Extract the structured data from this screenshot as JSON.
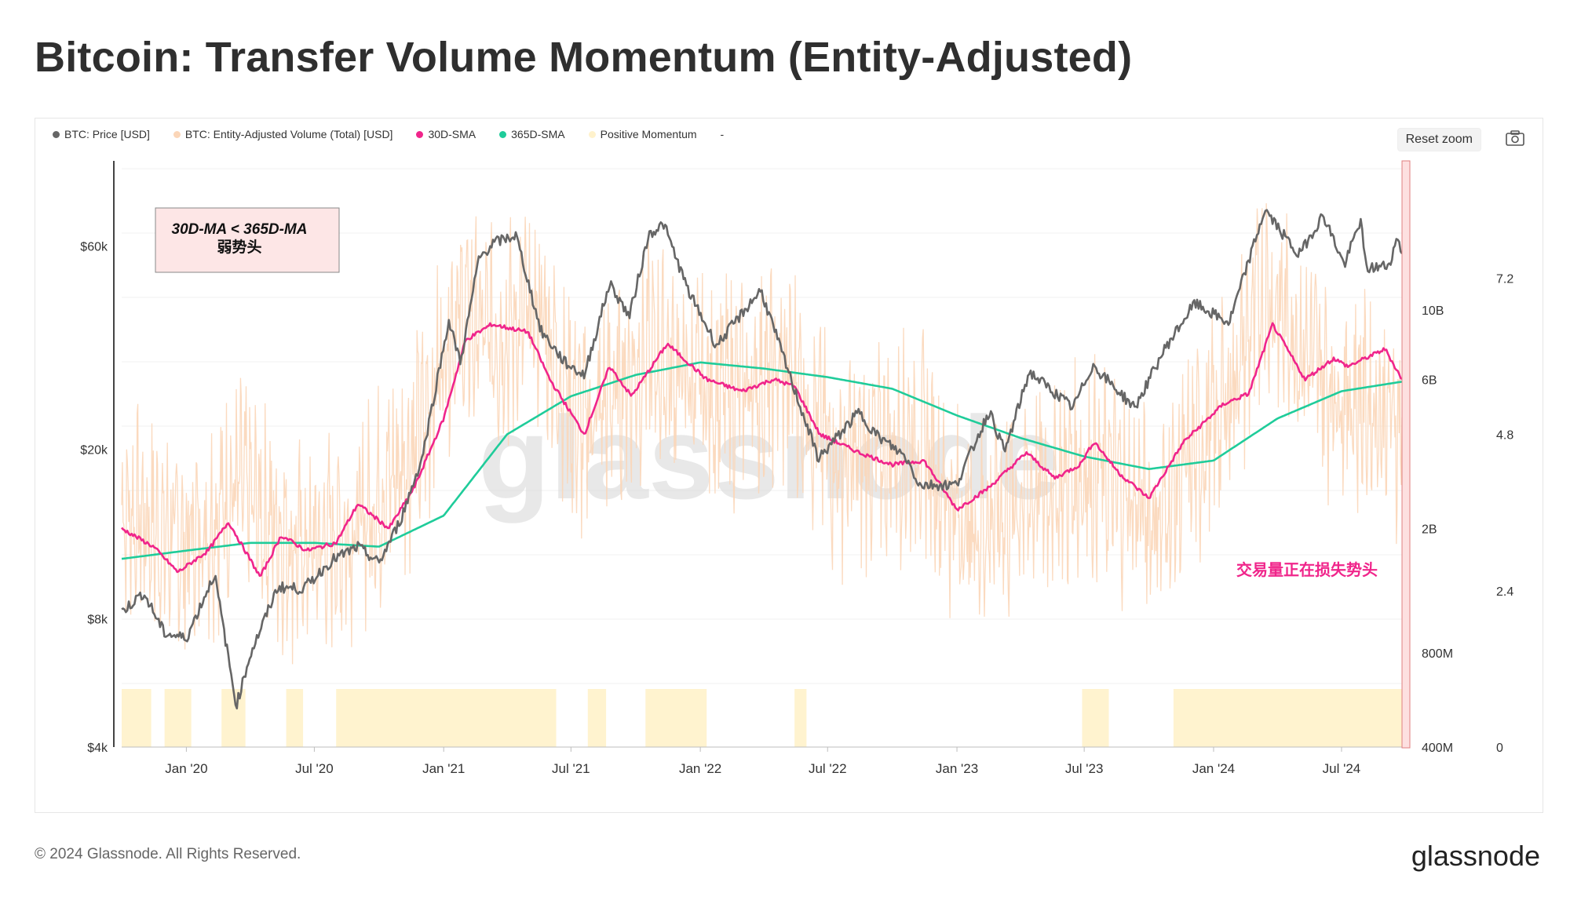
{
  "title": "Bitcoin: Transfer Volume Momentum (Entity-Adjusted)",
  "legend": [
    {
      "label": "BTC: Price [USD]",
      "color": "#666666"
    },
    {
      "label": "BTC: Entity-Adjusted Volume (Total) [USD]",
      "color": "#fbd6b8"
    },
    {
      "label": "30D-SMA",
      "color": "#f0258b"
    },
    {
      "label": "365D-SMA",
      "color": "#1fcc9a"
    },
    {
      "label": "Positive Momentum",
      "color": "#fff2cc"
    },
    {
      "label": "-",
      "color": ""
    }
  ],
  "toolbar": {
    "reset_label": "Reset zoom"
  },
  "watermark": "glassnode",
  "annotations": {
    "box_line1": "30D-MA < 365D-MA",
    "box_line2": "弱势头",
    "note": "交易量正在损失势头"
  },
  "footer": {
    "copyright": "© 2024 Glassnode. All Rights Reserved.",
    "brand": "glassnode"
  },
  "chart_data": {
    "type": "line",
    "x_ticks": [
      "Jan '20",
      "Jul '20",
      "Jan '21",
      "Jul '21",
      "Jan '22",
      "Jul '22",
      "Jan '23",
      "Jul '23",
      "Jan '24",
      "Jul '24"
    ],
    "x_range": [
      "2019-10-01",
      "2024-09-25"
    ],
    "y_left": {
      "ticks": [
        "$4k",
        "$8k",
        "$20k",
        "$60k"
      ],
      "values": [
        4000,
        8000,
        20000,
        60000
      ],
      "scale": "log"
    },
    "y_right1": {
      "ticks": [
        "400M",
        "800M",
        "2B",
        "6B",
        "10B"
      ],
      "values": [
        400000000,
        800000000,
        2000000000,
        6000000000,
        10000000000
      ],
      "scale": "log"
    },
    "y_right2": {
      "ticks": [
        "0",
        "2.4",
        "4.8",
        "7.2"
      ],
      "values": [
        0,
        2.4,
        4.8,
        7.2
      ]
    },
    "series": [
      {
        "name": "BTC: Price [USD]",
        "color": "#666666",
        "axis": "left",
        "points": [
          [
            "2019-10-01",
            8300
          ],
          [
            "2019-11-01",
            9200
          ],
          [
            "2019-12-01",
            7400
          ],
          [
            "2020-01-01",
            7200
          ],
          [
            "2020-02-10",
            10200
          ],
          [
            "2020-03-12",
            5000
          ],
          [
            "2020-04-01",
            6600
          ],
          [
            "2020-05-10",
            9500
          ],
          [
            "2020-06-15",
            9400
          ],
          [
            "2020-07-27",
            11000
          ],
          [
            "2020-09-01",
            11800
          ],
          [
            "2020-10-01",
            10800
          ],
          [
            "2020-11-01",
            13700
          ],
          [
            "2020-12-01",
            19000
          ],
          [
            "2021-01-08",
            40000
          ],
          [
            "2021-01-25",
            32000
          ],
          [
            "2021-02-20",
            56000
          ],
          [
            "2021-03-13",
            61000
          ],
          [
            "2021-04-14",
            63500
          ],
          [
            "2021-05-19",
            38000
          ],
          [
            "2021-06-22",
            32000
          ],
          [
            "2021-07-20",
            29800
          ],
          [
            "2021-08-25",
            49000
          ],
          [
            "2021-09-22",
            41000
          ],
          [
            "2021-10-20",
            64000
          ],
          [
            "2021-11-10",
            67500
          ],
          [
            "2021-12-15",
            47000
          ],
          [
            "2022-01-24",
            35000
          ],
          [
            "2022-03-28",
            47300
          ],
          [
            "2022-05-12",
            28500
          ],
          [
            "2022-06-18",
            19000
          ],
          [
            "2022-08-14",
            24400
          ],
          [
            "2022-09-10",
            21500
          ],
          [
            "2022-10-20",
            19200
          ],
          [
            "2022-11-09",
            16500
          ],
          [
            "2022-12-31",
            16500
          ],
          [
            "2023-02-16",
            24600
          ],
          [
            "2023-03-10",
            19700
          ],
          [
            "2023-04-14",
            30400
          ],
          [
            "2023-06-15",
            25000
          ],
          [
            "2023-07-13",
            31500
          ],
          [
            "2023-09-11",
            25000
          ],
          [
            "2023-10-24",
            34500
          ],
          [
            "2023-12-05",
            44000
          ],
          [
            "2024-01-23",
            39500
          ],
          [
            "2024-03-14",
            73000
          ],
          [
            "2024-05-01",
            57000
          ],
          [
            "2024-06-05",
            71000
          ],
          [
            "2024-07-05",
            54000
          ],
          [
            "2024-07-28",
            69000
          ],
          [
            "2024-08-05",
            53000
          ],
          [
            "2024-09-06",
            54000
          ],
          [
            "2024-09-20",
            63500
          ],
          [
            "2024-09-25",
            57000
          ]
        ]
      },
      {
        "name": "BTC: Entity-Adjusted Volume (Total) [USD]",
        "color": "#fbd6b8",
        "axis": "right1",
        "points": [
          [
            "2019-10-01",
            2400000000
          ],
          [
            "2020-01-01",
            1800000000
          ],
          [
            "2020-03-12",
            2800000000
          ],
          [
            "2020-06-15",
            1700000000
          ],
          [
            "2020-09-01",
            2100000000
          ],
          [
            "2020-12-01",
            4200000000
          ],
          [
            "2021-01-15",
            10000000000
          ],
          [
            "2021-03-15",
            8500000000
          ],
          [
            "2021-05-19",
            10000000000
          ],
          [
            "2021-07-15",
            4200000000
          ],
          [
            "2021-10-20",
            7500000000
          ],
          [
            "2022-01-15",
            5600000000
          ],
          [
            "2022-05-12",
            6500000000
          ],
          [
            "2022-07-15",
            3300000000
          ],
          [
            "2022-11-09",
            4000000000
          ],
          [
            "2023-01-15",
            2000000000
          ],
          [
            "2023-04-15",
            2700000000
          ],
          [
            "2023-07-15",
            3200000000
          ],
          [
            "2023-10-15",
            2200000000
          ],
          [
            "2024-01-15",
            5000000000
          ],
          [
            "2024-03-14",
            12000000000
          ],
          [
            "2024-06-15",
            6000000000
          ],
          [
            "2024-09-25",
            4500000000
          ]
        ]
      },
      {
        "name": "30D-SMA",
        "color": "#f0258b",
        "axis": "right1",
        "points": [
          [
            "2019-10-01",
            2000000000
          ],
          [
            "2019-11-15",
            1750000000
          ],
          [
            "2019-12-20",
            1450000000
          ],
          [
            "2020-02-01",
            1700000000
          ],
          [
            "2020-03-01",
            2100000000
          ],
          [
            "2020-04-15",
            1400000000
          ],
          [
            "2020-05-15",
            1900000000
          ],
          [
            "2020-06-20",
            1700000000
          ],
          [
            "2020-08-01",
            1800000000
          ],
          [
            "2020-09-01",
            2400000000
          ],
          [
            "2020-10-15",
            2000000000
          ],
          [
            "2020-11-20",
            2700000000
          ],
          [
            "2021-01-01",
            4500000000
          ],
          [
            "2021-02-01",
            8000000000
          ],
          [
            "2021-03-10",
            9000000000
          ],
          [
            "2021-05-01",
            8500000000
          ],
          [
            "2021-06-01",
            6000000000
          ],
          [
            "2021-07-20",
            4000000000
          ],
          [
            "2021-08-25",
            6600000000
          ],
          [
            "2021-09-25",
            5300000000
          ],
          [
            "2021-11-15",
            7800000000
          ],
          [
            "2022-01-10",
            6000000000
          ],
          [
            "2022-03-01",
            5500000000
          ],
          [
            "2022-04-15",
            6000000000
          ],
          [
            "2022-05-15",
            5700000000
          ],
          [
            "2022-06-20",
            4000000000
          ],
          [
            "2022-08-15",
            3500000000
          ],
          [
            "2022-10-01",
            3200000000
          ],
          [
            "2022-11-15",
            3300000000
          ],
          [
            "2023-01-01",
            2300000000
          ],
          [
            "2023-02-15",
            2700000000
          ],
          [
            "2023-04-10",
            3500000000
          ],
          [
            "2023-05-20",
            2900000000
          ],
          [
            "2023-06-25",
            3200000000
          ],
          [
            "2023-07-15",
            3800000000
          ],
          [
            "2023-08-20",
            3000000000
          ],
          [
            "2023-10-01",
            2500000000
          ],
          [
            "2023-11-20",
            3800000000
          ],
          [
            "2024-01-15",
            5000000000
          ],
          [
            "2024-02-20",
            5400000000
          ],
          [
            "2024-03-25",
            9000000000
          ],
          [
            "2024-05-10",
            6000000000
          ],
          [
            "2024-06-20",
            7000000000
          ],
          [
            "2024-07-10",
            6600000000
          ],
          [
            "2024-08-15",
            7200000000
          ],
          [
            "2024-09-01",
            7500000000
          ],
          [
            "2024-09-25",
            6000000000
          ]
        ]
      },
      {
        "name": "365D-SMA",
        "color": "#1fcc9a",
        "axis": "right1",
        "points": [
          [
            "2019-10-01",
            1600000000
          ],
          [
            "2020-01-01",
            1700000000
          ],
          [
            "2020-04-01",
            1800000000
          ],
          [
            "2020-07-01",
            1800000000
          ],
          [
            "2020-10-01",
            1750000000
          ],
          [
            "2021-01-01",
            2200000000
          ],
          [
            "2021-04-01",
            4000000000
          ],
          [
            "2021-07-01",
            5300000000
          ],
          [
            "2021-10-01",
            6200000000
          ],
          [
            "2022-01-01",
            6800000000
          ],
          [
            "2022-04-01",
            6500000000
          ],
          [
            "2022-07-01",
            6100000000
          ],
          [
            "2022-10-01",
            5600000000
          ],
          [
            "2023-01-01",
            4600000000
          ],
          [
            "2023-04-01",
            3900000000
          ],
          [
            "2023-07-01",
            3400000000
          ],
          [
            "2023-10-01",
            3100000000
          ],
          [
            "2024-01-01",
            3300000000
          ],
          [
            "2024-04-01",
            4500000000
          ],
          [
            "2024-07-01",
            5500000000
          ],
          [
            "2024-09-25",
            5900000000
          ]
        ]
      },
      {
        "name": "Positive Momentum",
        "color": "#fff2cc",
        "axis": "right2",
        "ranges": [
          [
            "2019-10-01",
            "2019-11-12"
          ],
          [
            "2019-12-01",
            "2020-01-08"
          ],
          [
            "2020-02-20",
            "2020-03-25"
          ],
          [
            "2020-05-22",
            "2020-06-15"
          ],
          [
            "2020-08-01",
            "2021-06-10"
          ],
          [
            "2021-07-25",
            "2021-08-20"
          ],
          [
            "2021-10-15",
            "2022-01-10"
          ],
          [
            "2022-05-15",
            "2022-06-01"
          ],
          [
            "2023-06-28",
            "2023-08-05"
          ],
          [
            "2023-11-05",
            "2024-09-25"
          ]
        ]
      }
    ]
  }
}
